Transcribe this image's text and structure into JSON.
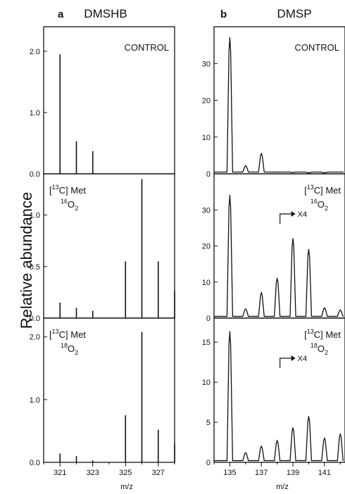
{
  "figure": {
    "ylabel": "Relative abundance",
    "xlabel": "m/z",
    "columns": [
      {
        "letter": "a",
        "title": "DMSHB"
      },
      {
        "letter": "b",
        "title": "DMSP"
      }
    ]
  },
  "chart_data": [
    {
      "type": "bar",
      "column": "a",
      "row": 0,
      "label": "CONTROL",
      "x": [
        321,
        322,
        323
      ],
      "values": [
        1.95,
        0.53,
        0.37
      ],
      "xlim": [
        320,
        328
      ],
      "ylim": [
        0,
        2.4
      ],
      "yticks": [
        0.0,
        1.0,
        2.0
      ],
      "ytick_labels": [
        "0.0",
        "1.0",
        "2.0"
      ]
    },
    {
      "type": "bar",
      "column": "a",
      "row": 1,
      "label_pre": "[",
      "label_sup": "13",
      "label_mid": "C] Met",
      "label2_sup": "16",
      "label2_main": "O",
      "label2_sub": "2",
      "x": [
        321,
        322,
        323,
        325,
        326,
        327,
        328
      ],
      "values": [
        0.15,
        0.1,
        0.07,
        0.55,
        1.35,
        0.55,
        0.26
      ],
      "xlim": [
        320,
        328
      ],
      "ylim": [
        0,
        1.4
      ],
      "yticks": [
        0.0,
        0.5,
        1.0
      ],
      "ytick_labels": [
        "0.0",
        "0.5",
        "1.0"
      ]
    },
    {
      "type": "bar",
      "column": "a",
      "row": 2,
      "label_pre": "[",
      "label_sup": "13",
      "label_mid": "C] Met",
      "label2_sup": "18",
      "label2_main": "O",
      "label2_sub": "2",
      "x": [
        321,
        322,
        323,
        325,
        326,
        327,
        328
      ],
      "values": [
        0.14,
        0.1,
        0.03,
        0.75,
        2.08,
        0.52,
        0.3
      ],
      "xlim": [
        320,
        328
      ],
      "ylim": [
        0,
        2.3
      ],
      "yticks": [
        0.0,
        1.0,
        2.0
      ],
      "ytick_labels": [
        "0.0",
        "1.0",
        "2.0"
      ],
      "xticks": [
        321,
        323,
        325,
        327
      ],
      "xtick_labels": [
        "321",
        "323",
        "325",
        "327"
      ]
    },
    {
      "type": "line",
      "column": "b",
      "row": 0,
      "label": "CONTROL",
      "x": [
        135,
        136,
        137,
        138,
        139,
        140,
        141
      ],
      "values": [
        37,
        2.2,
        5.5,
        0.5,
        0.4,
        0.3,
        0.3
      ],
      "xlim": [
        134,
        142.3
      ],
      "ylim": [
        0,
        40
      ],
      "yticks": [
        0,
        10,
        20,
        30
      ],
      "ytick_labels": [
        "0",
        "10",
        "20",
        "30"
      ]
    },
    {
      "type": "line",
      "column": "b",
      "row": 1,
      "label_pre": "[",
      "label_sup": "13",
      "label_mid": "C] Met",
      "label2_sup": "16",
      "label2_main": "O",
      "label2_sub": "2",
      "scale_label": "X4",
      "scale_start": 138,
      "x": [
        135,
        136,
        137,
        138,
        139,
        140,
        141,
        142
      ],
      "values": [
        34,
        2.5,
        7,
        11,
        22,
        19,
        2.8,
        2.2
      ],
      "xlim": [
        134,
        142.3
      ],
      "ylim": [
        0,
        40
      ],
      "yticks": [
        0,
        10,
        20,
        30
      ],
      "ytick_labels": [
        "0",
        "10",
        "20",
        "30"
      ]
    },
    {
      "type": "line",
      "column": "b",
      "row": 2,
      "label_pre": "[",
      "label_sup": "13",
      "label_mid": "C] Met",
      "label2_sup": "18",
      "label2_main": "O",
      "label2_sub": "2",
      "scale_label": "X4",
      "scale_start": 138,
      "x": [
        135,
        136,
        137,
        138,
        139,
        140,
        141,
        142
      ],
      "values": [
        16.3,
        1.2,
        2,
        2.7,
        4.3,
        5.7,
        3,
        3.5
      ],
      "xlim": [
        134,
        142.3
      ],
      "ylim": [
        0,
        18
      ],
      "yticks": [
        0,
        5,
        10,
        15
      ],
      "ytick_labels": [
        "0",
        "5",
        "10",
        "15"
      ],
      "xticks": [
        135,
        137,
        139,
        141
      ],
      "xtick_labels": [
        "135",
        "137",
        "139",
        "141"
      ]
    }
  ]
}
